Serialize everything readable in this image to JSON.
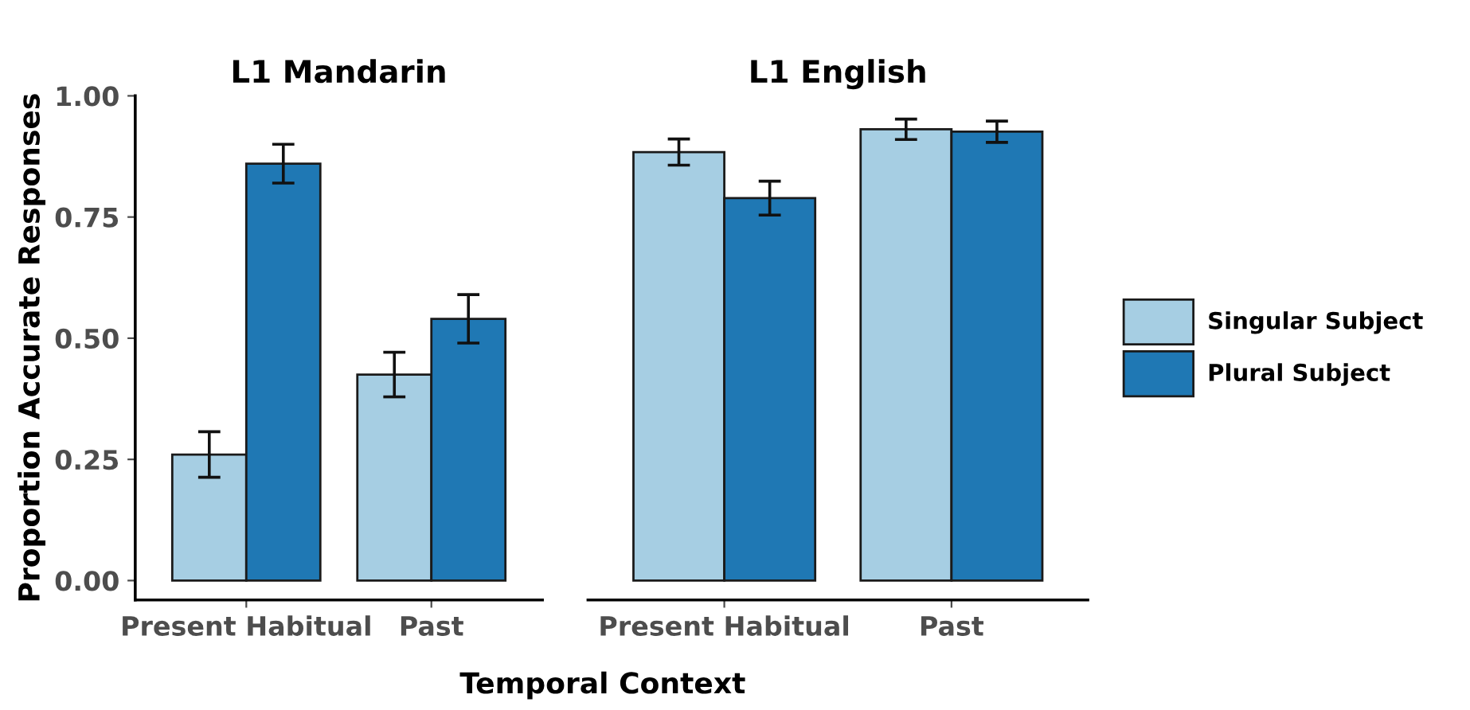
{
  "chart_data": [
    {
      "type": "bar",
      "title": "L1 Mandarin",
      "ylabel": "Proportion Accurate Responses",
      "xlabel": "Temporal Context",
      "categories": [
        "Present Habitual",
        "Past"
      ],
      "ylim": [
        -0.04,
        1.0
      ],
      "yticks": [
        {
          "value": 0,
          "label": "0.00"
        },
        {
          "value": 0.25,
          "label": "0.25"
        },
        {
          "value": 0.5,
          "label": "0.50"
        },
        {
          "value": 0.75,
          "label": "0.75"
        },
        {
          "value": 1.0,
          "label": "1.00"
        }
      ],
      "grid": false,
      "legend": false,
      "series": [
        {
          "color": "#a6cee3",
          "values": [
            0.26,
            0.425
          ],
          "errors": [
            0.047,
            0.046
          ]
        },
        {
          "color": "#1f78b4",
          "values": [
            0.86,
            0.54
          ],
          "errors": [
            0.04,
            0.05
          ]
        }
      ]
    },
    {
      "type": "bar",
      "title": "L1 English",
      "categories": [
        "Present Habitual",
        "Past"
      ],
      "ylim": [
        -0.04,
        1.0
      ],
      "tick_labels": "x",
      "grid": false,
      "legend": "right",
      "series": [
        {
          "name": "Singular Subject",
          "color": "#a6cee3",
          "values": [
            0.884,
            0.931
          ],
          "errors": [
            0.027,
            0.021
          ]
        },
        {
          "name": "Plural Subject",
          "color": "#1f78b4",
          "values": [
            0.789,
            0.926
          ],
          "errors": [
            0.035,
            0.022
          ]
        }
      ]
    }
  ]
}
